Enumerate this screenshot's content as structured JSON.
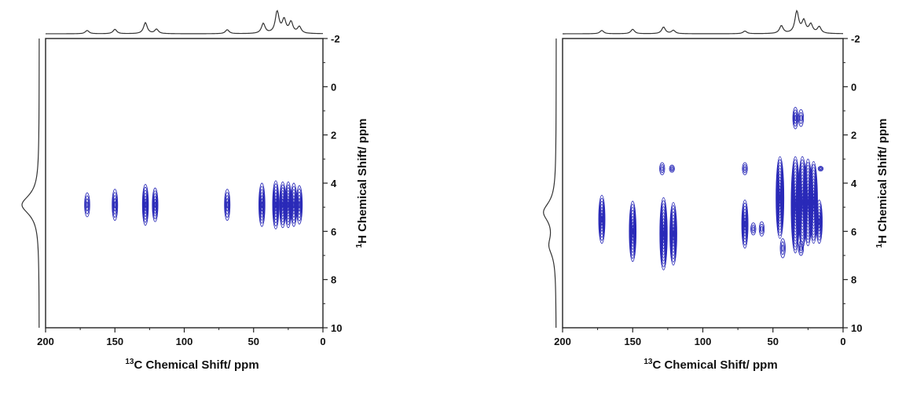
{
  "chart_data": [
    {
      "type": "contour",
      "xlabel_sup": "13",
      "xlabel": "C Chemical Shift/ ppm",
      "ylabel_sup": "1",
      "ylabel": "H Chemical Shift/ ppm",
      "xlim": [
        200,
        0
      ],
      "ylim": [
        -2,
        10
      ],
      "xticks": [
        200,
        150,
        100,
        50,
        0
      ],
      "yticks": [
        -2,
        0,
        2,
        4,
        6,
        8,
        10
      ],
      "contour_color": "#2a2ab8",
      "top_projection": [
        [
          170,
          0.15
        ],
        [
          150,
          0.2
        ],
        [
          128,
          0.5
        ],
        [
          120,
          0.2
        ],
        [
          69,
          0.18
        ],
        [
          43,
          0.45
        ],
        [
          33,
          1.0
        ],
        [
          28,
          0.6
        ],
        [
          23,
          0.5
        ],
        [
          17,
          0.3
        ]
      ],
      "side_projection": [
        [
          4.9,
          1.0
        ]
      ],
      "peaks": [
        {
          "x": 170,
          "y": 4.9,
          "height": 1.0
        },
        {
          "x": 150,
          "y": 4.9,
          "height": 1.3
        },
        {
          "x": 128,
          "y": 4.9,
          "height": 1.7
        },
        {
          "x": 121,
          "y": 4.9,
          "height": 1.4
        },
        {
          "x": 69,
          "y": 4.9,
          "height": 1.3
        },
        {
          "x": 44,
          "y": 4.9,
          "height": 1.8
        },
        {
          "x": 34,
          "y": 4.9,
          "height": 2.0
        },
        {
          "x": 29,
          "y": 4.9,
          "height": 1.9
        },
        {
          "x": 25,
          "y": 4.9,
          "height": 1.9
        },
        {
          "x": 21,
          "y": 4.9,
          "height": 1.8
        },
        {
          "x": 17,
          "y": 4.9,
          "height": 1.6
        }
      ]
    },
    {
      "type": "contour",
      "xlabel_sup": "13",
      "xlabel": "C Chemical Shift/ ppm",
      "ylabel_sup": "1",
      "ylabel": "H Chemical Shift/ ppm",
      "xlim": [
        200,
        0
      ],
      "ylim": [
        -2,
        10
      ],
      "xticks": [
        200,
        150,
        100,
        50,
        0
      ],
      "yticks": [
        -2,
        0,
        2,
        4,
        6,
        8,
        10
      ],
      "contour_color": "#2a2ab8",
      "top_projection": [
        [
          172,
          0.15
        ],
        [
          150,
          0.2
        ],
        [
          128,
          0.3
        ],
        [
          121,
          0.15
        ],
        [
          70,
          0.12
        ],
        [
          44,
          0.35
        ],
        [
          33,
          1.0
        ],
        [
          28,
          0.55
        ],
        [
          23,
          0.4
        ],
        [
          17,
          0.3
        ]
      ],
      "side_projection": [
        [
          5.2,
          0.7
        ],
        [
          6.6,
          0.35
        ]
      ],
      "peaks": [
        {
          "x": 172,
          "y": 5.5,
          "height": 2.0
        },
        {
          "x": 150,
          "y": 6.0,
          "height": 2.5
        },
        {
          "x": 129,
          "y": 3.4,
          "height": 0.5
        },
        {
          "x": 122,
          "y": 3.4,
          "height": 0.3
        },
        {
          "x": 128,
          "y": 6.1,
          "height": 3.0
        },
        {
          "x": 121,
          "y": 6.1,
          "height": 2.6
        },
        {
          "x": 70,
          "y": 3.4,
          "height": 0.5
        },
        {
          "x": 70,
          "y": 5.7,
          "height": 2.0
        },
        {
          "x": 64,
          "y": 5.9,
          "height": 0.5
        },
        {
          "x": 58,
          "y": 5.9,
          "height": 0.6
        },
        {
          "x": 45,
          "y": 4.6,
          "height": 3.4
        },
        {
          "x": 43,
          "y": 6.7,
          "height": 0.8
        },
        {
          "x": 34,
          "y": 1.3,
          "height": 0.9
        },
        {
          "x": 30,
          "y": 1.3,
          "height": 0.7
        },
        {
          "x": 34,
          "y": 4.9,
          "height": 4.0
        },
        {
          "x": 30,
          "y": 6.7,
          "height": 0.6
        },
        {
          "x": 29,
          "y": 4.8,
          "height": 3.8
        },
        {
          "x": 25,
          "y": 4.8,
          "height": 3.6
        },
        {
          "x": 21,
          "y": 4.8,
          "height": 3.4
        },
        {
          "x": 17,
          "y": 5.6,
          "height": 1.8
        },
        {
          "x": 16,
          "y": 3.4,
          "height": 0.2
        }
      ]
    }
  ]
}
